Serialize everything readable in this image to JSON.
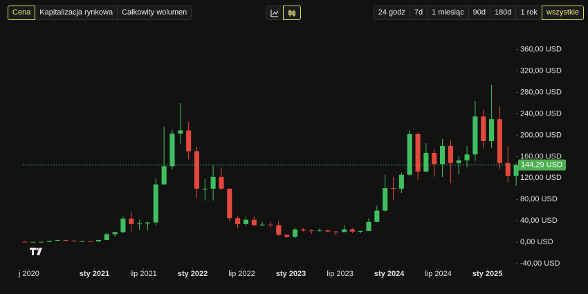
{
  "toolbar": {
    "metrics": [
      "Cena",
      "Kapitalizacja rynkowa",
      "Całkowity wolumen"
    ],
    "ranges": [
      "24 godz",
      "7d",
      "1 miesiąc",
      "90d",
      "180d",
      "1 rok",
      "wszystkie"
    ]
  },
  "chart_data": {
    "type": "candlestick",
    "up_color": "#3fbf5f",
    "down_color": "#e5483c",
    "grid": false,
    "x": [
      "2020-04",
      "2020-05",
      "2020-06",
      "2020-07",
      "2020-08",
      "2020-09",
      "2020-10",
      "2020-11",
      "2020-12",
      "2021-01",
      "2021-02",
      "2021-03",
      "2021-04",
      "2021-05",
      "2021-06",
      "2021-07",
      "2021-08",
      "2021-09",
      "2021-10",
      "2021-11",
      "2021-12",
      "2022-01",
      "2022-02",
      "2022-03",
      "2022-04",
      "2022-05",
      "2022-06",
      "2022-07",
      "2022-08",
      "2022-09",
      "2022-10",
      "2022-11",
      "2022-12",
      "2023-01",
      "2023-02",
      "2023-03",
      "2023-04",
      "2023-05",
      "2023-06",
      "2023-07",
      "2023-08",
      "2023-09",
      "2023-10",
      "2023-11",
      "2023-12",
      "2024-01",
      "2024-02",
      "2024-03",
      "2024-04",
      "2024-05",
      "2024-06",
      "2024-07",
      "2024-08",
      "2024-09",
      "2024-10",
      "2024-11",
      "2024-12",
      "2025-01",
      "2025-02",
      "2025-03",
      "2025-04"
    ],
    "open": [
      0.95,
      0.6,
      0.6,
      0.8,
      2.7,
      4.1,
      3.0,
      1.8,
      1.9,
      1.5,
      4.2,
      15,
      19,
      44,
      34,
      35,
      37,
      108,
      142,
      203,
      209,
      170,
      100,
      100,
      122,
      100,
      45,
      34,
      42,
      32,
      33,
      32,
      14,
      10,
      24,
      22,
      21,
      22,
      20,
      19,
      24,
      20,
      21,
      38,
      59,
      101,
      100,
      126,
      202,
      132,
      167,
      146,
      180,
      148,
      153,
      164,
      235,
      189,
      230,
      148,
      124
    ],
    "high": [
      1.3,
      0.8,
      0.9,
      2.7,
      4.9,
      4.6,
      3.2,
      2.4,
      2.1,
      4.5,
      17,
      19,
      48,
      58,
      42,
      38,
      120,
      216,
      210,
      260,
      225,
      178,
      118,
      144,
      140,
      100,
      50,
      48,
      48,
      38,
      38,
      40,
      14,
      27,
      27,
      24,
      26,
      23,
      21,
      32,
      26,
      22,
      45,
      68,
      126,
      122,
      130,
      209,
      205,
      185,
      174,
      193,
      191,
      161,
      180,
      264,
      247,
      294,
      254,
      180,
      147
    ],
    "low": [
      0.5,
      0.5,
      0.5,
      0.8,
      2.5,
      2.2,
      1.1,
      1.1,
      1.3,
      1.5,
      4.0,
      11,
      17,
      20,
      23,
      22,
      31,
      108,
      136,
      184,
      155,
      82,
      78,
      78,
      97,
      40,
      26,
      30,
      30,
      30,
      27,
      11,
      8,
      8,
      20,
      16,
      20,
      19,
      13,
      19,
      17,
      17,
      21,
      37,
      57,
      79,
      92,
      124,
      117,
      131,
      122,
      122,
      110,
      126,
      140,
      152,
      175,
      176,
      136,
      112,
      105
    ],
    "close": [
      0.6,
      0.6,
      0.8,
      2.7,
      4.1,
      3.0,
      1.8,
      1.9,
      1.5,
      4.2,
      15,
      19,
      44,
      34,
      35,
      37,
      108,
      142,
      203,
      209,
      170,
      100,
      100,
      122,
      100,
      45,
      34,
      42,
      32,
      33,
      32,
      14,
      10,
      24,
      22,
      21,
      22,
      20,
      19,
      24,
      20,
      21,
      38,
      59,
      101,
      100,
      126,
      202,
      132,
      167,
      146,
      180,
      148,
      153,
      164,
      235,
      189,
      230,
      148,
      124,
      144.29
    ],
    "xlim": [
      "2020-04",
      "2025-05"
    ],
    "xticks": [
      {
        "value": "2020-05",
        "label": "j 2020"
      },
      {
        "value": "2021-01",
        "label": "sty 2021"
      },
      {
        "value": "2021-07",
        "label": "lip 2021"
      },
      {
        "value": "2022-01",
        "label": "sty 2022"
      },
      {
        "value": "2022-07",
        "label": "lip 2022"
      },
      {
        "value": "2023-01",
        "label": "sty 2023"
      },
      {
        "value": "2023-07",
        "label": "lip 2023"
      },
      {
        "value": "2024-01",
        "label": "sty 2024"
      },
      {
        "value": "2024-07",
        "label": "lip 2024"
      },
      {
        "value": "2025-01",
        "label": "sty 2025"
      }
    ],
    "ylim": [
      -45,
      375
    ],
    "yticks": [
      {
        "value": -40,
        "label": "-40,00 USD"
      },
      {
        "value": 0,
        "label": "0,00 USD"
      },
      {
        "value": 40,
        "label": "40,00 USD"
      },
      {
        "value": 80,
        "label": "80,00 USD"
      },
      {
        "value": 120,
        "label": "120,00 USD"
      },
      {
        "value": 160,
        "label": "160,00 USD"
      },
      {
        "value": 200,
        "label": "200,00 USD"
      },
      {
        "value": 240,
        "label": "240,00 USD"
      },
      {
        "value": 280,
        "label": "280,00 USD"
      },
      {
        "value": 320,
        "label": "320,00 USD"
      },
      {
        "value": 360,
        "label": "360,00 USD"
      }
    ],
    "last_price": {
      "value": 144.29,
      "label": "144,29 USD"
    }
  }
}
